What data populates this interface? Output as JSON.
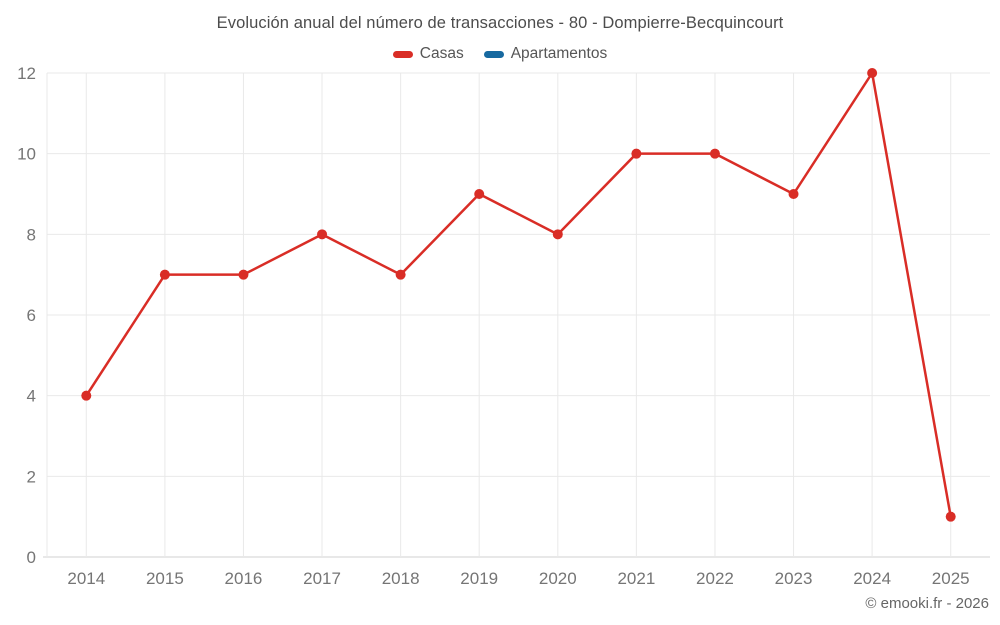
{
  "title": "Evolución anual del número de transacciones - 80 - Dompierre-Becquincourt",
  "legend": [
    {
      "label": "Casas",
      "color": "#d92d26"
    },
    {
      "label": "Apartamentos",
      "color": "#1769a0"
    }
  ],
  "footer": "© emooki.fr - 2026",
  "chart_data": {
    "type": "line",
    "title": "Evolución anual del número de transacciones - 80 - Dompierre-Becquincourt",
    "categories": [
      "2014",
      "2015",
      "2016",
      "2017",
      "2018",
      "2019",
      "2020",
      "2021",
      "2022",
      "2023",
      "2024",
      "2025"
    ],
    "series": [
      {
        "name": "Casas",
        "color": "#d92d26",
        "values": [
          4,
          7,
          7,
          8,
          7,
          9,
          8,
          10,
          10,
          9,
          12,
          1
        ]
      },
      {
        "name": "Apartamentos",
        "color": "#1769a0",
        "values": []
      }
    ],
    "xlabel": "",
    "ylabel": "",
    "ylim": [
      0,
      12
    ],
    "ytick_step": 2,
    "grid": true,
    "legend_position": "top"
  },
  "colors": {
    "grid_line": "#e9e9e9",
    "axis_line": "#d2d2d2",
    "tick_label": "#757575",
    "title_text": "#4c4c4c",
    "legend_text": "#565656",
    "footer_text": "#666666"
  }
}
